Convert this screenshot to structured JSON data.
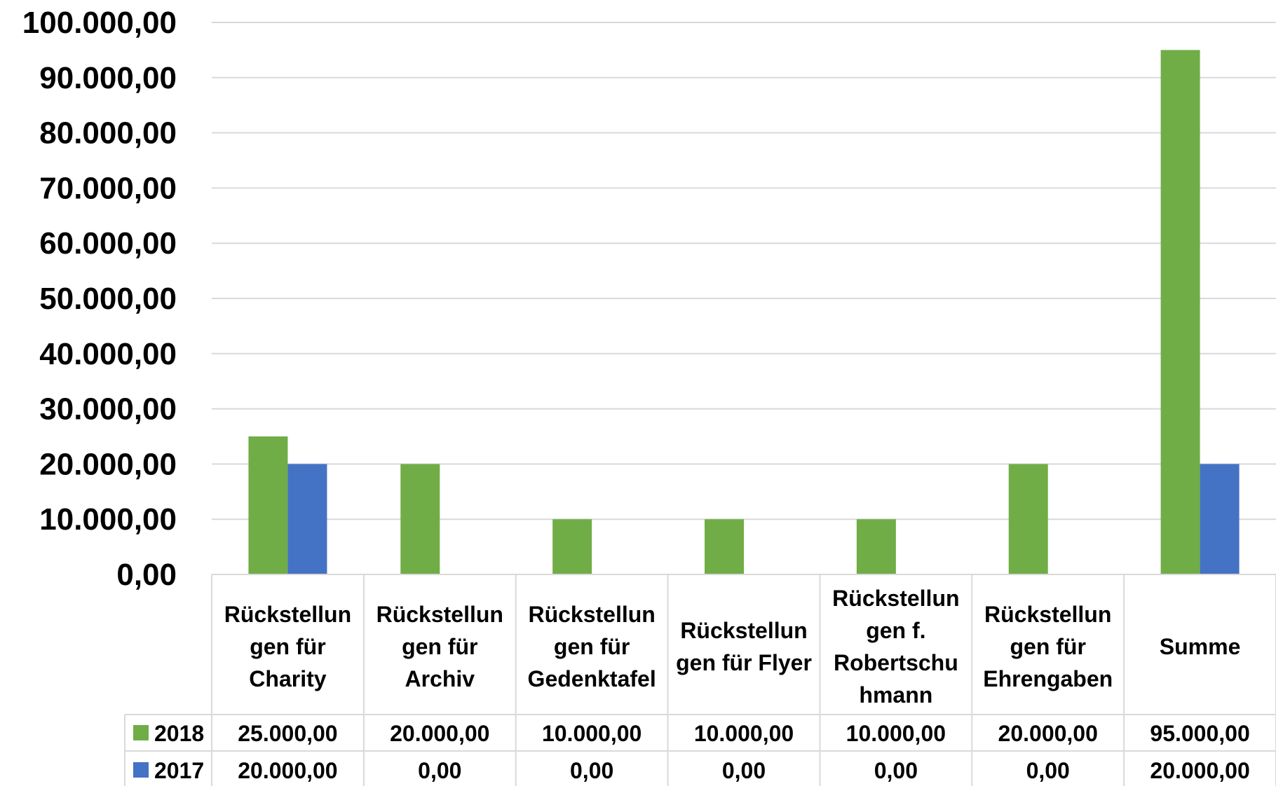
{
  "chart_data": {
    "type": "bar",
    "categories": [
      "Rückstellungen für Charity",
      "Rückstellungen für Archiv",
      "Rückstellungen für Gedenktafel",
      "Rückstellungen für Flyer",
      "Rückstellungen f. Robertschuhmann",
      "Rückstellungen für Ehrengaben",
      "Summe"
    ],
    "category_label_lines": [
      [
        "Rückstellun",
        "gen für",
        "Charity"
      ],
      [
        "Rückstellun",
        "gen für",
        "Archiv"
      ],
      [
        "Rückstellun",
        "gen für",
        "Gedenktafel"
      ],
      [
        "Rückstellun",
        "gen für Flyer"
      ],
      [
        "Rückstellun",
        "gen f.",
        "Robertschu",
        "hmann"
      ],
      [
        "Rückstellun",
        "gen für",
        "Ehrengaben"
      ],
      [
        "Summe"
      ]
    ],
    "series": [
      {
        "name": "2018",
        "color": "#70AD47",
        "values": [
          25000,
          20000,
          10000,
          10000,
          10000,
          20000,
          95000
        ],
        "display_values": [
          "25.000,00",
          "20.000,00",
          "10.000,00",
          "10.000,00",
          "10.000,00",
          "20.000,00",
          "95.000,00"
        ]
      },
      {
        "name": "2017",
        "color": "#4472C4",
        "values": [
          20000,
          0,
          0,
          0,
          0,
          0,
          20000
        ],
        "display_values": [
          "20.000,00",
          "0,00",
          "0,00",
          "0,00",
          "0,00",
          "0,00",
          "20.000,00"
        ]
      }
    ],
    "ylim": [
      0,
      100000
    ],
    "y_tick_labels": [
      "0,00",
      "10.000,00",
      "20.000,00",
      "30.000,00",
      "40.000,00",
      "50.000,00",
      "60.000,00",
      "70.000,00",
      "80.000,00",
      "90.000,00",
      "100.000,00"
    ],
    "grid": true,
    "legend": "data-table-left",
    "title": "",
    "xlabel": "",
    "ylabel": ""
  }
}
